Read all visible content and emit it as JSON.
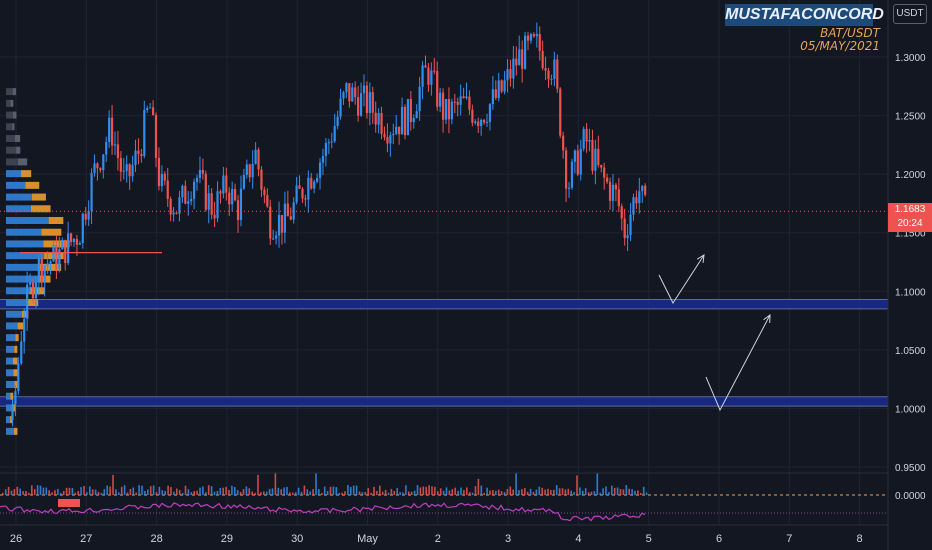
{
  "header": {
    "author": "MUSTAFACONCORD",
    "symbol": "BAT/USDT",
    "date": "05/MAY/2021",
    "currency": "USDT"
  },
  "price_tag": {
    "price": "1.1683",
    "countdown": "20:24"
  },
  "chart_data": {
    "type": "candlestick",
    "x_ticks": [
      "26",
      "27",
      "28",
      "29",
      "30",
      "May",
      "2",
      "3",
      "4",
      "5",
      "6",
      "7",
      "8"
    ],
    "y_ticks": [
      "1.3000",
      "1.2500",
      "1.2000",
      "1.1500",
      "1.1000",
      "1.0500",
      "1.0000",
      "0.9500"
    ],
    "ylim": [
      0.95,
      1.33
    ],
    "current_price": 1.1683,
    "support_zones": [
      [
        1.085,
        1.093
      ],
      [
        1.002,
        1.01
      ]
    ],
    "poc_price": 1.133,
    "close_path": [
      [
        25.95,
        0.99
      ],
      [
        26.1,
        1.08
      ],
      [
        26.3,
        1.12
      ],
      [
        26.6,
        1.13
      ],
      [
        26.9,
        1.15
      ],
      [
        27.1,
        1.2
      ],
      [
        27.35,
        1.24
      ],
      [
        27.55,
        1.19
      ],
      [
        27.75,
        1.22
      ],
      [
        27.9,
        1.26
      ],
      [
        28.05,
        1.19
      ],
      [
        28.3,
        1.17
      ],
      [
        28.55,
        1.2
      ],
      [
        28.8,
        1.17
      ],
      [
        29.0,
        1.19
      ],
      [
        29.15,
        1.17
      ],
      [
        29.4,
        1.22
      ],
      [
        29.6,
        1.16
      ],
      [
        29.85,
        1.16
      ],
      [
        30.1,
        1.19
      ],
      [
        30.4,
        1.22
      ],
      [
        30.7,
        1.27
      ],
      [
        31.0,
        1.26
      ],
      [
        31.3,
        1.24
      ],
      [
        31.6,
        1.25
      ],
      [
        31.85,
        1.29
      ],
      [
        32.1,
        1.25
      ],
      [
        32.35,
        1.26
      ],
      [
        32.6,
        1.25
      ],
      [
        32.9,
        1.27
      ],
      [
        33.15,
        1.3
      ],
      [
        33.4,
        1.31
      ],
      [
        33.65,
        1.29
      ],
      [
        33.85,
        1.19
      ],
      [
        34.1,
        1.23
      ],
      [
        34.3,
        1.2
      ],
      [
        34.55,
        1.18
      ],
      [
        34.65,
        1.15
      ],
      [
        34.85,
        1.19
      ],
      [
        34.95,
        1.168
      ]
    ],
    "indicator_ticks": [
      "0.0000"
    ]
  }
}
